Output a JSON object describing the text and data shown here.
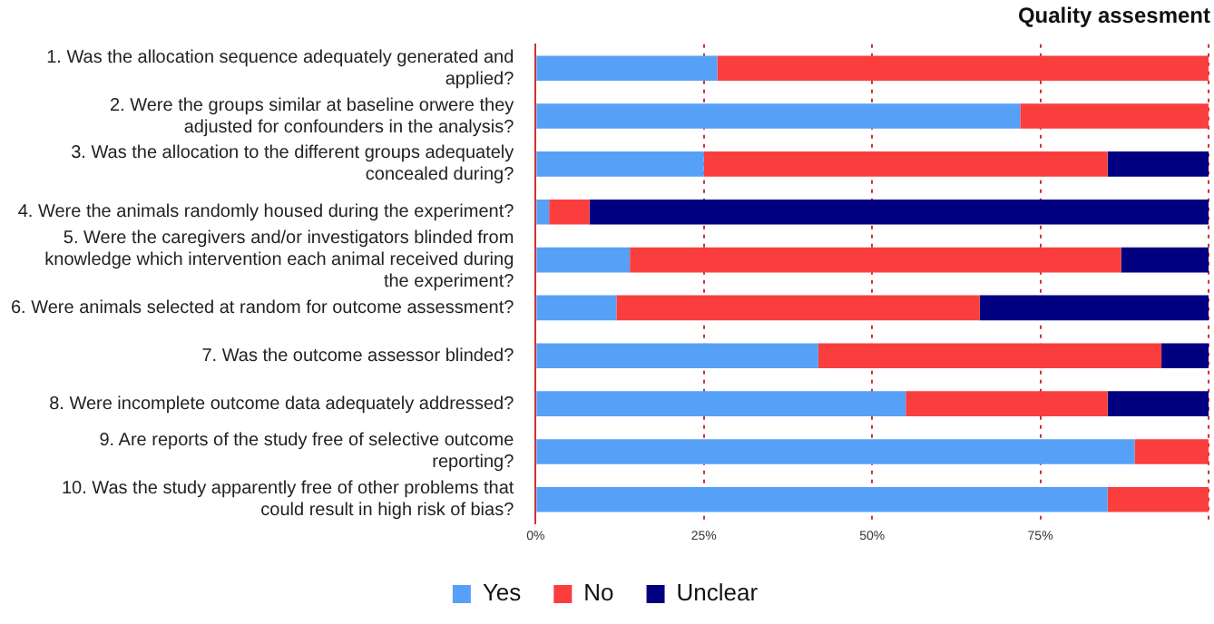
{
  "chart_data": {
    "type": "bar",
    "title": "Quality assesment",
    "orientation": "horizontal",
    "stacked": true,
    "categories": [
      "1. Was the allocation sequence adequately generated and applied?",
      "2. Were the groups similar at baseline orwere they adjusted for confounders in the analysis?",
      "3. Was the allocation to the different groups adequately concealed during?",
      "4. Were the animals randomly housed during the experiment?",
      "5. Were the caregivers and/or investigators blinded from knowledge which intervention each animal received during the experiment?",
      "6. Were animals selected at random for outcome assessment?",
      "7. Was the outcome assessor blinded?",
      "8. Were incomplete outcome data adequately addressed?",
      "9. Are reports of the study free of selective outcome reporting?",
      "10. Was the study apparently free of other problems that could result in high risk of bias?"
    ],
    "series": [
      {
        "name": "Yes",
        "color": "#56a0f8",
        "values": [
          27,
          72,
          25,
          2,
          14,
          12,
          42,
          55,
          89,
          85
        ]
      },
      {
        "name": "No",
        "color": "#fa3e3e",
        "values": [
          73,
          28,
          60,
          6,
          73,
          54,
          51,
          30,
          11,
          15
        ]
      },
      {
        "name": "Unclear",
        "color": "#000080",
        "values": [
          0,
          0,
          15,
          92,
          13,
          34,
          7,
          15,
          0,
          0
        ]
      }
    ],
    "xlim": [
      0,
      100
    ],
    "xticks": [
      {
        "value": 0,
        "label": "0%"
      },
      {
        "value": 25,
        "label": "25%"
      },
      {
        "value": 50,
        "label": "50%"
      },
      {
        "value": 75,
        "label": "75%"
      },
      {
        "value": 100,
        "label": null
      }
    ],
    "grid": "x",
    "legend": "bottom"
  }
}
